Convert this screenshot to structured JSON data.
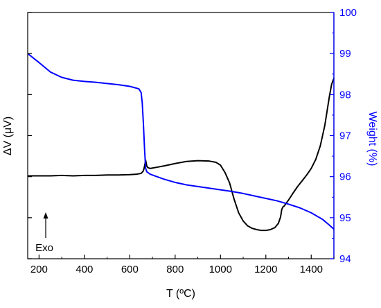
{
  "chart_data": {
    "type": "line",
    "xlabel": "T (ºC)",
    "ylabel_left": "ΔV (μV)",
    "ylabel_right": "Weight (%)",
    "xlim": [
      150,
      1500
    ],
    "x_ticks": [
      200,
      400,
      600,
      800,
      1000,
      1200,
      1400
    ],
    "y_right_lim": [
      94,
      100
    ],
    "y_right_ticks": [
      94,
      95,
      96,
      97,
      98,
      99,
      100
    ],
    "left_axis_ticks_labeled": false,
    "annotation": "Exo",
    "series": [
      {
        "axis": "left",
        "color": "#000000",
        "x": [
          150,
          200,
          250,
          300,
          350,
          400,
          450,
          500,
          550,
          600,
          630,
          650,
          660,
          665,
          670,
          675,
          680,
          690,
          700,
          720,
          750,
          800,
          850,
          900,
          950,
          980,
          1000,
          1020,
          1040,
          1060,
          1080,
          1100,
          1120,
          1140,
          1160,
          1180,
          1200,
          1220,
          1240,
          1255,
          1265,
          1270,
          1275,
          1280,
          1300,
          1320,
          1340,
          1360,
          1380,
          1400,
          1420,
          1440,
          1460,
          1470,
          1480,
          1490,
          1500
        ],
        "y": [
          96.02,
          96.02,
          96.02,
          96.03,
          96.02,
          96.03,
          96.03,
          96.04,
          96.04,
          96.05,
          96.06,
          96.08,
          96.14,
          96.25,
          96.4,
          96.26,
          96.22,
          96.2,
          96.21,
          96.23,
          96.26,
          96.32,
          96.37,
          96.39,
          96.38,
          96.35,
          96.28,
          96.1,
          95.85,
          95.45,
          95.12,
          94.92,
          94.8,
          94.74,
          94.71,
          94.69,
          94.69,
          94.71,
          94.76,
          94.86,
          95.02,
          95.2,
          95.26,
          95.28,
          95.43,
          95.6,
          95.76,
          95.9,
          96.04,
          96.2,
          96.42,
          96.75,
          97.25,
          97.6,
          97.95,
          98.25,
          98.4
        ]
      },
      {
        "axis": "right",
        "color": "#0000ff",
        "x": [
          150,
          200,
          250,
          300,
          350,
          400,
          450,
          500,
          550,
          600,
          620,
          640,
          650,
          655,
          660,
          665,
          670,
          675,
          680,
          690,
          700,
          720,
          750,
          800,
          850,
          900,
          950,
          1000,
          1050,
          1100,
          1150,
          1200,
          1250,
          1300,
          1350,
          1400,
          1450,
          1480,
          1500
        ],
        "y": [
          99.0,
          98.78,
          98.55,
          98.42,
          98.35,
          98.32,
          98.3,
          98.27,
          98.24,
          98.2,
          98.17,
          98.14,
          98.05,
          97.8,
          97.3,
          96.7,
          96.2,
          96.12,
          96.1,
          96.06,
          96.04,
          96.0,
          95.94,
          95.86,
          95.8,
          95.76,
          95.72,
          95.68,
          95.64,
          95.59,
          95.53,
          95.47,
          95.41,
          95.33,
          95.24,
          95.12,
          94.96,
          94.82,
          94.72
        ]
      }
    ]
  }
}
